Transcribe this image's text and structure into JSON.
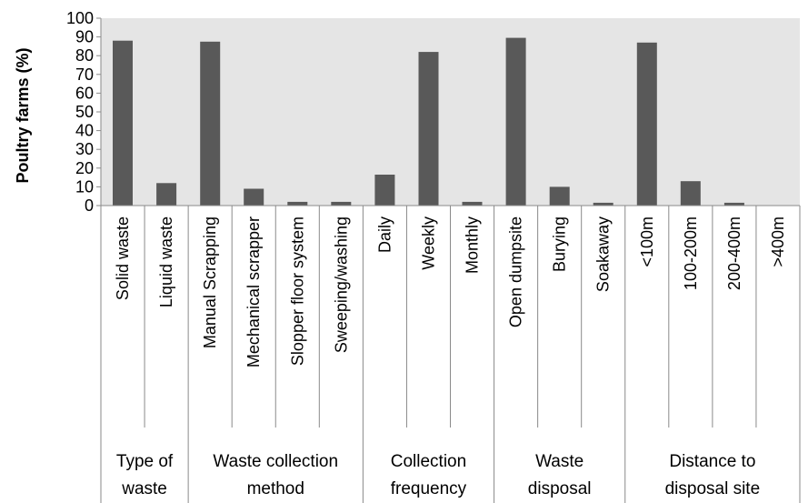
{
  "chart_data": {
    "type": "bar",
    "title": "",
    "xlabel": "",
    "ylabel": "Poultry farms (%)",
    "ylim": [
      0,
      100
    ],
    "yticks": [
      "0",
      "10",
      "20",
      "30",
      "40",
      "50",
      "60",
      "70",
      "80",
      "90",
      "100"
    ],
    "grid": false,
    "categories": [
      "Solid waste",
      "Liquid waste",
      "Manual Scrapping",
      "Mechanical scrapper",
      "Slopper floor system",
      "Sweeping/washing",
      "Daily",
      "Weekly",
      "Monthly",
      "Open dumpsite",
      "Burying",
      "Soakaway",
      "<100m",
      "100-200m",
      "200-400m",
      ">400m"
    ],
    "values": [
      88,
      12,
      87.5,
      9,
      2,
      2,
      16.5,
      82,
      2,
      89.5,
      10,
      1.5,
      87,
      13,
      1.5,
      0
    ],
    "groups": [
      {
        "lines": [
          "Type of",
          "waste"
        ],
        "span": [
          0,
          1
        ]
      },
      {
        "lines": [
          "Waste collection",
          "method"
        ],
        "span": [
          2,
          5
        ]
      },
      {
        "lines": [
          "Collection",
          "frequency"
        ],
        "span": [
          6,
          8
        ]
      },
      {
        "lines": [
          "Waste",
          "disposal"
        ],
        "span": [
          9,
          11
        ]
      },
      {
        "lines": [
          "Distance to",
          "disposal site"
        ],
        "span": [
          12,
          15
        ]
      }
    ]
  },
  "colors": {
    "bar": "#595959",
    "plot_background": "#e5e5e5",
    "axis": "#8a8a8a"
  }
}
